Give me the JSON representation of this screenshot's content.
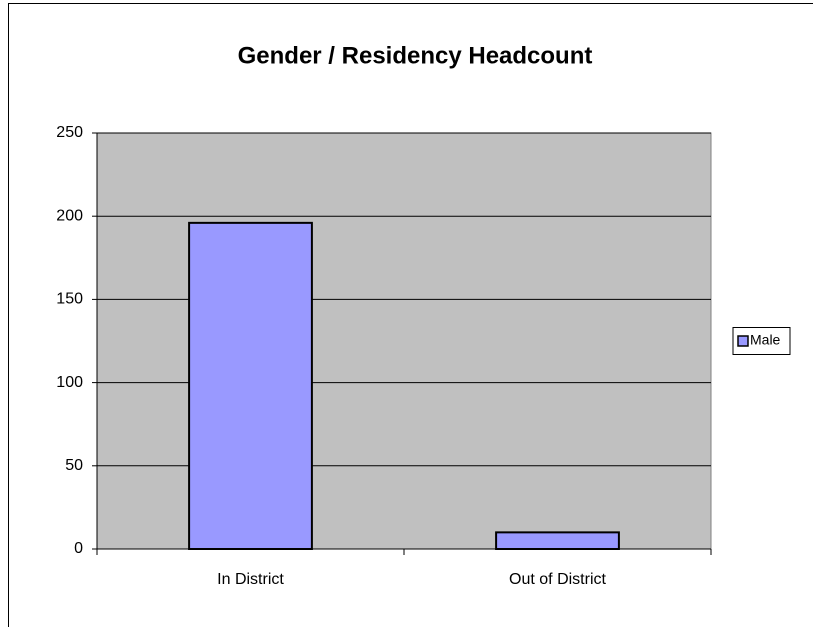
{
  "chart_data": {
    "type": "bar",
    "title": "Gender / Residency Headcount",
    "categories": [
      "In District",
      "Out of District"
    ],
    "series": [
      {
        "name": "Male",
        "color": "#9999ff",
        "values": [
          196,
          10
        ]
      }
    ],
    "ylim": [
      0,
      250
    ],
    "yticks": [
      0,
      50,
      100,
      150,
      200,
      250
    ],
    "grid": true,
    "legend": "right"
  }
}
